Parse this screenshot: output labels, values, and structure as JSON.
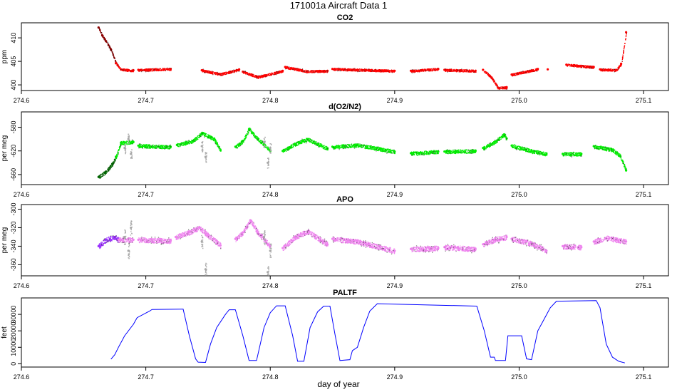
{
  "figure": {
    "title": "171001a   Aircraft Data 1",
    "xlabel": "day of year"
  },
  "colors": {
    "co2_main": "#ff0000",
    "co2_dark": "#8b0000",
    "o2_main": "#00ee00",
    "o2_dark": "#006400",
    "apo_main": "#ee82ee",
    "apo_dark": "#9b30ff",
    "gray": "#a9a9a9",
    "paltf": "#0000ff"
  },
  "chart_data": [
    {
      "type": "scatter",
      "title": "CO2",
      "ylabel": "ppm",
      "xlim": [
        274.6,
        275.12
      ],
      "ylim": [
        398.8,
        413.2
      ],
      "xticks": [
        "274.6",
        "274.7",
        "274.8",
        "274.9",
        "275.0",
        "275.1"
      ],
      "yticks": [
        "400",
        "405",
        "410"
      ],
      "series": [
        {
          "style": "dark",
          "points": [
            [
              274.662,
              412.2
            ],
            [
              274.665,
              410.5
            ],
            [
              274.668,
              409.3
            ],
            [
              274.672,
              407.5
            ],
            [
              274.676,
              404.6
            ]
          ]
        },
        {
          "style": "main",
          "points": [
            [
              274.676,
              404.6
            ],
            [
              274.68,
              403.3
            ],
            [
              274.69,
              403.1
            ],
            [
              274.69,
              null
            ],
            [
              274.694,
              403.2
            ],
            [
              274.72,
              403.4
            ],
            [
              274.74,
              null
            ],
            [
              274.745,
              403.1
            ],
            [
              274.76,
              402.3
            ],
            [
              274.775,
              403.3
            ],
            [
              274.775,
              null
            ],
            [
              274.778,
              402.8
            ],
            [
              274.79,
              401.7
            ],
            [
              274.81,
              403.0
            ],
            [
              274.81,
              null
            ],
            [
              274.812,
              403.8
            ],
            [
              274.83,
              402.9
            ],
            [
              274.846,
              403.0
            ],
            [
              274.846,
              null
            ],
            [
              274.85,
              403.4
            ],
            [
              274.9,
              403.0
            ],
            [
              274.91,
              null
            ],
            [
              274.913,
              403.0
            ],
            [
              274.935,
              403.4
            ],
            [
              274.935,
              null
            ],
            [
              274.94,
              403.2
            ],
            [
              274.965,
              403.0
            ],
            [
              274.968,
              null
            ],
            [
              274.971,
              403.2
            ],
            [
              274.978,
              401.5
            ],
            [
              274.983,
              399.4
            ],
            [
              274.99,
              399.5
            ],
            [
              274.99,
              null
            ],
            [
              274.994,
              402.2
            ],
            [
              275.015,
              403.4
            ],
            [
              275.02,
              null
            ],
            [
              275.023,
              403.3
            ],
            [
              275.035,
              null
            ],
            [
              275.038,
              404.3
            ],
            [
              275.06,
              403.8
            ],
            [
              275.062,
              null
            ],
            [
              275.065,
              403.3
            ],
            [
              275.078,
              403.2
            ],
            [
              275.082,
              404.5
            ],
            [
              275.086,
              411.2
            ]
          ]
        }
      ]
    },
    {
      "type": "scatter",
      "title": "d(O2/N2)",
      "ylabel": "per meg",
      "xlim": [
        274.6,
        275.12
      ],
      "ylim": [
        -677,
        -554
      ],
      "xticks": [
        "274.6",
        "274.7",
        "274.8",
        "274.9",
        "275.0",
        "275.1"
      ],
      "yticks": [
        "-660",
        "-620",
        "-580"
      ],
      "series": [
        {
          "style": "dark",
          "points": [
            [
              274.662,
              -664
            ],
            [
              274.668,
              -655
            ],
            [
              274.673,
              -642
            ],
            [
              274.676,
              -630
            ]
          ]
        },
        {
          "style": "main",
          "points": [
            [
              274.676,
              -630
            ],
            [
              274.68,
              -606
            ],
            [
              274.69,
              -605
            ],
            [
              274.69,
              null
            ],
            [
              274.694,
              -611
            ],
            [
              274.72,
              -613
            ],
            [
              274.72,
              null
            ],
            [
              274.725,
              -610
            ],
            [
              274.738,
              -603
            ],
            [
              274.745,
              -590
            ],
            [
              274.755,
              -600
            ],
            [
              274.76,
              -619
            ],
            [
              274.76,
              null
            ],
            [
              274.772,
              -613
            ],
            [
              274.778,
              -603
            ],
            [
              274.783,
              -583
            ],
            [
              274.79,
              -600
            ],
            [
              274.795,
              -609
            ],
            [
              274.8,
              -620
            ],
            [
              274.8,
              null
            ],
            [
              274.81,
              -620
            ],
            [
              274.82,
              -608
            ],
            [
              274.83,
              -600
            ],
            [
              274.846,
              -616
            ],
            [
              274.846,
              null
            ],
            [
              274.85,
              -613
            ],
            [
              274.87,
              -610
            ],
            [
              274.9,
              -621
            ],
            [
              274.91,
              null
            ],
            [
              274.913,
              -624
            ],
            [
              274.935,
              -621
            ],
            [
              274.935,
              null
            ],
            [
              274.94,
              -621
            ],
            [
              274.965,
              -620
            ],
            [
              274.968,
              null
            ],
            [
              274.971,
              -615
            ],
            [
              274.98,
              -605
            ],
            [
              274.988,
              -592
            ],
            [
              274.99,
              -599
            ],
            [
              274.99,
              null
            ],
            [
              274.994,
              -611
            ],
            [
              275.01,
              -620
            ],
            [
              275.022,
              -625
            ],
            [
              275.022,
              null
            ],
            [
              275.035,
              -625
            ],
            [
              275.05,
              -625
            ],
            [
              275.05,
              null
            ],
            [
              275.06,
              -612
            ],
            [
              275.075,
              -618
            ],
            [
              275.081,
              -628
            ],
            [
              275.086,
              -653
            ]
          ]
        },
        {
          "style": "gray",
          "points": [
            [
              274.683,
              -615
            ],
            [
              274.686,
              -600
            ],
            [
              274.688,
              -625
            ],
            [
              274.745,
              -612
            ],
            [
              274.748,
              -630
            ],
            [
              274.795,
              -605
            ],
            [
              274.798,
              -640
            ],
            [
              274.8,
              -615
            ]
          ]
        }
      ]
    },
    {
      "type": "scatter",
      "title": "APO",
      "ylabel": "per meg",
      "xlim": [
        274.6,
        275.12
      ],
      "ylim": [
        -372,
        -295
      ],
      "xticks": [
        "274.6",
        "274.7",
        "274.8",
        "274.9",
        "275.0",
        "275.1"
      ],
      "yticks": [
        "-360",
        "-340",
        "-320",
        "-300"
      ],
      "series": [
        {
          "style": "dark",
          "points": [
            [
              274.662,
              -340
            ],
            [
              274.668,
              -333
            ],
            [
              274.675,
              -330
            ],
            [
              274.678,
              -333
            ]
          ]
        },
        {
          "style": "main",
          "points": [
            [
              274.678,
              -333
            ],
            [
              274.69,
              -333
            ],
            [
              274.69,
              null
            ],
            [
              274.694,
              -333
            ],
            [
              274.72,
              -334
            ],
            [
              274.72,
              null
            ],
            [
              274.724,
              -330
            ],
            [
              274.735,
              -325
            ],
            [
              274.743,
              -320
            ],
            [
              274.75,
              -328
            ],
            [
              274.76,
              -339
            ],
            [
              274.76,
              null
            ],
            [
              274.772,
              -332
            ],
            [
              274.778,
              -325
            ],
            [
              274.784,
              -312
            ],
            [
              274.79,
              -325
            ],
            [
              274.8,
              -340
            ],
            [
              274.8,
              null
            ],
            [
              274.81,
              -342
            ],
            [
              274.82,
              -330
            ],
            [
              274.83,
              -324
            ],
            [
              274.846,
              -338
            ],
            [
              274.846,
              null
            ],
            [
              274.85,
              -332
            ],
            [
              274.87,
              -335
            ],
            [
              274.9,
              -345
            ],
            [
              274.91,
              null
            ],
            [
              274.913,
              -343
            ],
            [
              274.935,
              -342
            ],
            [
              274.935,
              null
            ],
            [
              274.94,
              -341
            ],
            [
              274.965,
              -343
            ],
            [
              274.968,
              null
            ],
            [
              274.971,
              -338
            ],
            [
              274.98,
              -333
            ],
            [
              274.99,
              -330
            ],
            [
              274.99,
              null
            ],
            [
              274.994,
              -332
            ],
            [
              275.01,
              -337
            ],
            [
              275.022,
              -345
            ],
            [
              275.022,
              null
            ],
            [
              275.035,
              -340
            ],
            [
              275.05,
              -341
            ],
            [
              275.05,
              null
            ],
            [
              275.06,
              -335
            ],
            [
              275.07,
              -331
            ],
            [
              275.086,
              -335
            ]
          ]
        },
        {
          "style": "gray",
          "points": [
            [
              274.683,
              -330
            ],
            [
              274.686,
              -345
            ],
            [
              274.688,
              -320
            ],
            [
              274.745,
              -335
            ],
            [
              274.748,
              -365
            ],
            [
              274.795,
              -330
            ],
            [
              274.798,
              -368
            ],
            [
              274.8,
              -345
            ]
          ]
        }
      ]
    },
    {
      "type": "line",
      "title": "PALTF",
      "ylabel": "feet",
      "xlim": [
        274.6,
        275.12
      ],
      "ylim": [
        -2000,
        40000
      ],
      "xticks": [
        "274.6",
        "274.7",
        "274.8",
        "274.9",
        "275.0",
        "275.1"
      ],
      "yticks": [
        "0",
        "10000",
        "20000",
        "30000"
      ],
      "series": [
        {
          "style": "line",
          "points": [
            [
              274.672,
              2800
            ],
            [
              274.675,
              5500
            ],
            [
              274.678,
              10000
            ],
            [
              274.683,
              17000
            ],
            [
              274.69,
              24000
            ],
            [
              274.693,
              28000
            ],
            [
              274.703,
              32000
            ],
            [
              274.705,
              33000
            ],
            [
              274.73,
              33200
            ],
            [
              274.735,
              17000
            ],
            [
              274.74,
              3000
            ],
            [
              274.742,
              1000
            ],
            [
              274.748,
              800
            ],
            [
              274.752,
              12000
            ],
            [
              274.757,
              22000
            ],
            [
              274.764,
              30000
            ],
            [
              274.767,
              32800
            ],
            [
              274.772,
              32800
            ],
            [
              274.778,
              17000
            ],
            [
              274.783,
              2000
            ],
            [
              274.789,
              2000
            ],
            [
              274.795,
              22000
            ],
            [
              274.8,
              31000
            ],
            [
              274.805,
              35200
            ],
            [
              274.812,
              35200
            ],
            [
              274.818,
              17000
            ],
            [
              274.822,
              1500
            ],
            [
              274.827,
              1500
            ],
            [
              274.832,
              22000
            ],
            [
              274.838,
              31500
            ],
            [
              274.843,
              35000
            ],
            [
              274.848,
              35000
            ],
            [
              274.852,
              18000
            ],
            [
              274.856,
              2000
            ],
            [
              274.864,
              2500
            ],
            [
              274.866,
              8000
            ],
            [
              274.87,
              10000
            ],
            [
              274.875,
              22000
            ],
            [
              274.88,
              32000
            ],
            [
              274.886,
              36500
            ],
            [
              274.966,
              35000
            ],
            [
              274.972,
              20000
            ],
            [
              274.977,
              4000
            ],
            [
              274.98,
              4000
            ],
            [
              274.981,
              2000
            ],
            [
              274.989,
              2000
            ],
            [
              274.991,
              17000
            ],
            [
              275.002,
              17000
            ],
            [
              275.006,
              3000
            ],
            [
              275.01,
              2500
            ],
            [
              275.015,
              20000
            ],
            [
              275.025,
              34000
            ],
            [
              275.03,
              38000
            ],
            [
              275.062,
              38400
            ],
            [
              275.065,
              34000
            ],
            [
              275.07,
              12000
            ],
            [
              275.075,
              4000
            ],
            [
              275.08,
              1500
            ],
            [
              275.085,
              500
            ]
          ]
        }
      ]
    }
  ]
}
